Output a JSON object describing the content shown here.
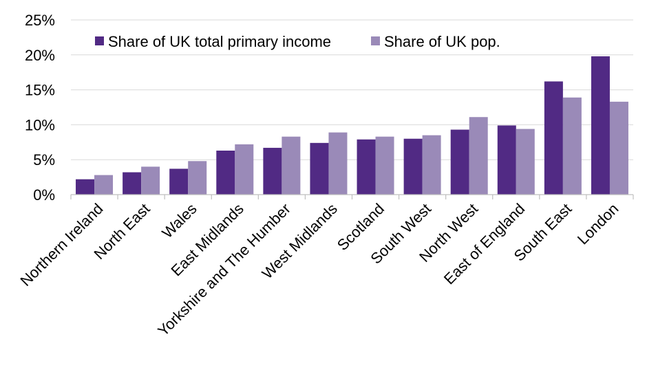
{
  "chart_data": {
    "type": "bar",
    "title": "",
    "xlabel": "",
    "ylabel": "",
    "ylim": [
      0,
      25
    ],
    "y_ticks": [
      0,
      5,
      10,
      15,
      20,
      25
    ],
    "y_tick_suffix": "%",
    "grid": true,
    "legend_position": "top-center",
    "categories": [
      "Northern Ireland",
      "North East",
      "Wales",
      "East Midlands",
      "Yorkshire and The Humber",
      "West Midlands",
      "Scotland",
      "South West",
      "North West",
      "East of England",
      "South East",
      "London"
    ],
    "series": [
      {
        "name": "Share of UK total primary income",
        "color": "#512a84",
        "values": [
          2.2,
          3.2,
          3.7,
          6.3,
          6.7,
          7.4,
          7.9,
          8.0,
          9.3,
          9.9,
          16.2,
          19.8
        ]
      },
      {
        "name": "Share of UK pop.",
        "color": "#9a8ab8",
        "values": [
          2.8,
          4.0,
          4.8,
          7.2,
          8.3,
          8.9,
          8.3,
          8.5,
          11.1,
          9.4,
          13.9,
          13.3
        ]
      }
    ]
  }
}
